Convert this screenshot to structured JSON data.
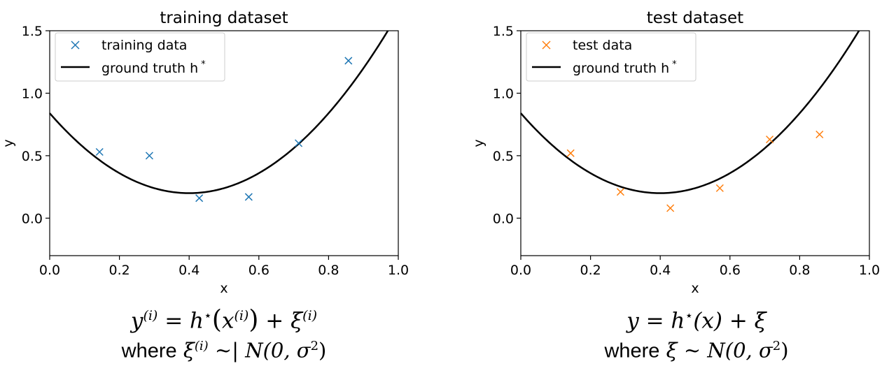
{
  "chart_data": [
    {
      "type": "scatter",
      "title": "training dataset",
      "xlabel": "x",
      "ylabel": "y",
      "xlim": [
        0.0,
        1.0
      ],
      "ylim": [
        -0.3,
        1.5
      ],
      "xticks": [
        "0.0",
        "0.2",
        "0.4",
        "0.6",
        "0.8",
        "1.0"
      ],
      "yticks": [
        "0.0",
        "0.5",
        "1.0",
        "1.5"
      ],
      "grid": false,
      "legend_position": "top-left",
      "series": [
        {
          "name": "training data",
          "kind": "scatter",
          "marker": "x",
          "color": "#1f77b4",
          "x": [
            0.143,
            0.286,
            0.429,
            0.571,
            0.714,
            0.857
          ],
          "y": [
            0.53,
            0.5,
            0.16,
            0.17,
            0.6,
            1.26
          ]
        },
        {
          "name": "ground truth h",
          "name_sup": "*",
          "kind": "line",
          "color": "#000000",
          "function": "y = 4*(x-0.4)^2 + 0.2",
          "x": [
            0.0,
            0.1,
            0.2,
            0.3,
            0.4,
            0.5,
            0.6,
            0.7,
            0.8,
            0.9,
            0.965
          ],
          "y": [
            0.84,
            0.56,
            0.36,
            0.24,
            0.2,
            0.24,
            0.36,
            0.56,
            0.84,
            1.2,
            1.5
          ]
        }
      ]
    },
    {
      "type": "scatter",
      "title": "test dataset",
      "xlabel": "x",
      "ylabel": "y",
      "xlim": [
        0.0,
        1.0
      ],
      "ylim": [
        -0.3,
        1.5
      ],
      "xticks": [
        "0.0",
        "0.2",
        "0.4",
        "0.6",
        "0.8",
        "1.0"
      ],
      "yticks": [
        "0.0",
        "0.5",
        "1.0",
        "1.5"
      ],
      "grid": false,
      "legend_position": "top-left",
      "series": [
        {
          "name": "test data",
          "kind": "scatter",
          "marker": "x",
          "color": "#ff7f0e",
          "x": [
            0.143,
            0.286,
            0.429,
            0.571,
            0.714,
            0.857
          ],
          "y": [
            0.52,
            0.21,
            0.08,
            0.24,
            0.63,
            0.67
          ]
        },
        {
          "name": "ground truth h",
          "name_sup": "*",
          "kind": "line",
          "color": "#000000",
          "function": "y = 4*(x-0.4)^2 + 0.2",
          "x": [
            0.0,
            0.1,
            0.2,
            0.3,
            0.4,
            0.5,
            0.6,
            0.7,
            0.8,
            0.9,
            0.965
          ],
          "y": [
            0.84,
            0.56,
            0.36,
            0.24,
            0.2,
            0.24,
            0.36,
            0.56,
            0.84,
            1.2,
            1.5
          ]
        }
      ]
    }
  ],
  "formulas": {
    "left": {
      "y": "y",
      "sup_i": "(i)",
      "eq": " = ",
      "h": "h",
      "star": "⋆",
      "paren_open": "(",
      "x": "x",
      "paren_close": ")",
      "plus": " + ",
      "xi": "ξ",
      "where": "where",
      "tilde": " ~| ",
      "dist": "N(0, σ",
      "sq": "2",
      "dist_close": ")"
    },
    "right": {
      "expr": "y = h",
      "star": "⋆",
      "rest": "(x) + ξ",
      "where": "where",
      "dist": "ξ ~ N(0, σ",
      "sq": "2",
      "dist_close": ")"
    }
  }
}
